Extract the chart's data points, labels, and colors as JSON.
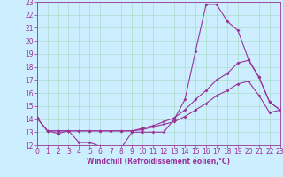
{
  "background_color": "#cceeff",
  "line_color": "#993399",
  "grid_color": "#aaddcc",
  "xlabel": "Windchill (Refroidissement éolien,°C)",
  "xlim": [
    0,
    23
  ],
  "ylim": [
    12,
    23
  ],
  "xticks": [
    0,
    1,
    2,
    3,
    4,
    5,
    6,
    7,
    8,
    9,
    10,
    11,
    12,
    13,
    14,
    15,
    16,
    17,
    18,
    19,
    20,
    21,
    22,
    23
  ],
  "yticks": [
    12,
    13,
    14,
    15,
    16,
    17,
    18,
    19,
    20,
    21,
    22,
    23
  ],
  "line1_x": [
    0,
    1,
    2,
    3,
    4,
    5,
    6,
    7,
    8,
    9,
    10,
    11,
    12,
    13,
    14,
    15,
    16,
    17,
    18,
    19,
    20,
    21,
    22,
    23
  ],
  "line1_y": [
    14.1,
    13.1,
    12.9,
    13.1,
    12.2,
    12.2,
    11.9,
    11.8,
    11.8,
    13.0,
    13.0,
    13.0,
    13.0,
    14.0,
    15.5,
    19.2,
    22.8,
    22.8,
    21.5,
    20.8,
    18.6,
    17.2,
    15.3,
    14.7
  ],
  "line2_x": [
    0,
    1,
    2,
    3,
    4,
    5,
    6,
    7,
    8,
    9,
    10,
    11,
    12,
    13,
    14,
    15,
    16,
    17,
    18,
    19,
    20,
    21,
    22,
    23
  ],
  "line2_y": [
    14.1,
    13.1,
    13.1,
    13.1,
    13.1,
    13.1,
    13.1,
    13.1,
    13.1,
    13.1,
    13.3,
    13.5,
    13.8,
    14.1,
    14.7,
    15.5,
    16.2,
    17.0,
    17.5,
    18.3,
    18.5,
    17.2,
    15.3,
    14.7
  ],
  "line3_x": [
    0,
    1,
    2,
    3,
    4,
    5,
    6,
    7,
    8,
    9,
    10,
    11,
    12,
    13,
    14,
    15,
    16,
    17,
    18,
    19,
    20,
    21,
    22,
    23
  ],
  "line3_y": [
    14.1,
    13.1,
    13.1,
    13.1,
    13.1,
    13.1,
    13.1,
    13.1,
    13.1,
    13.1,
    13.2,
    13.4,
    13.6,
    13.8,
    14.2,
    14.7,
    15.2,
    15.8,
    16.2,
    16.7,
    16.9,
    15.8,
    14.5,
    14.7
  ],
  "tick_fontsize": 5.5,
  "xlabel_fontsize": 5.5,
  "marker_size": 2.0,
  "line_width": 0.8
}
